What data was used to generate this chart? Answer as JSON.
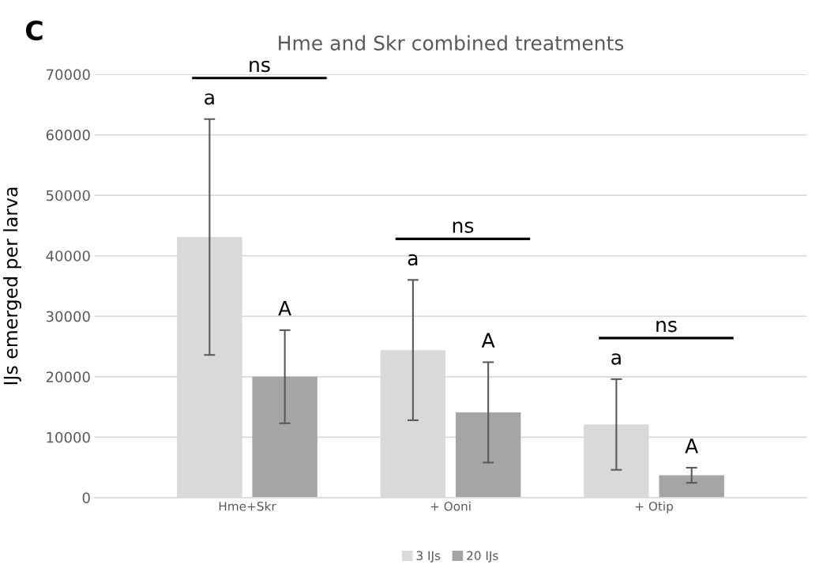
{
  "chart_data": {
    "type": "bar",
    "title": "Hme and Skr combined treatments",
    "ylabel": "IJs emerged per larva",
    "categories": [
      "Hme+Skr",
      "+ Ooni",
      "+ Otip"
    ],
    "series": [
      {
        "name": "3 IJs",
        "color": "#d9d9d9",
        "values": [
          43100,
          24400,
          12100
        ],
        "errors": [
          19500,
          11600,
          7500
        ]
      },
      {
        "name": "20 IJs",
        "color": "#a5a5a5",
        "values": [
          20000,
          14100,
          3700
        ],
        "errors": [
          7700,
          8300,
          1250
        ]
      }
    ],
    "annotations": [
      "C",
      "a",
      "A",
      "ns",
      "a",
      "A",
      "ns",
      "a",
      "A",
      "ns"
    ],
    "ylim": [
      0,
      70000
    ],
    "yticks": [
      0,
      10000,
      20000,
      30000,
      40000,
      50000,
      60000,
      70000
    ],
    "grid": "y",
    "legend": "bottom"
  }
}
